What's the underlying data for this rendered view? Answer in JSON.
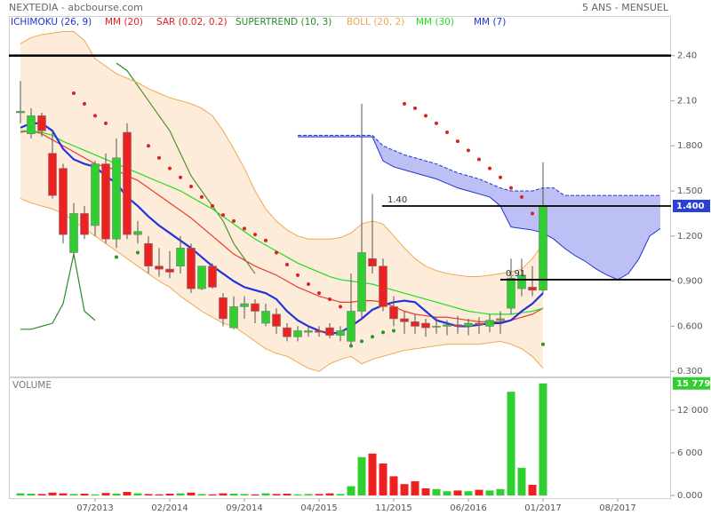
{
  "header": {
    "title": "NEXTEDIA - abcbourse.com",
    "period": "5 ANS - MENSUEL"
  },
  "chart_data": [
    {
      "type": "candlestick",
      "open": [
        2.02,
        1.88,
        2.0,
        1.75,
        1.65,
        1.09,
        1.35,
        1.27,
        1.68,
        1.18,
        1.89,
        1.21,
        1.15,
        1.0,
        0.98,
        1.0,
        1.12,
        0.85,
        1.0,
        0.79,
        0.59,
        0.73,
        0.75,
        0.62,
        0.68,
        0.59,
        0.53,
        0.56,
        0.57,
        0.59,
        0.54,
        0.5,
        0.7,
        1.05,
        1.0,
        0.73,
        0.65,
        0.63,
        0.62,
        0.6,
        0.6,
        0.61,
        0.6,
        0.62,
        0.6,
        0.64,
        0.72,
        0.85,
        0.86,
        0.84,
        null,
        null,
        null,
        null,
        null,
        null,
        null,
        null,
        null,
        null,
        null,
        null
      ],
      "high": [
        2.23,
        2.05,
        2.02,
        1.9,
        1.68,
        1.42,
        1.4,
        1.7,
        1.75,
        1.85,
        1.95,
        1.3,
        1.2,
        1.12,
        1.1,
        1.2,
        1.15,
        1.0,
        1.02,
        0.82,
        0.8,
        0.8,
        0.78,
        0.75,
        0.72,
        0.62,
        0.6,
        0.6,
        0.6,
        0.62,
        0.6,
        0.95,
        2.08,
        1.48,
        1.05,
        0.8,
        0.7,
        0.68,
        0.65,
        0.66,
        0.64,
        0.67,
        0.65,
        0.66,
        0.68,
        0.7,
        1.05,
        1.05,
        1.0,
        1.69,
        null,
        null,
        null,
        null,
        null,
        null,
        null,
        null,
        null,
        null,
        null,
        null
      ],
      "low": [
        1.95,
        1.85,
        1.86,
        1.45,
        1.15,
        1.06,
        1.18,
        1.2,
        1.15,
        1.12,
        1.18,
        1.15,
        0.95,
        0.93,
        0.92,
        0.95,
        0.82,
        0.84,
        0.85,
        0.6,
        0.58,
        0.65,
        0.62,
        0.6,
        0.55,
        0.5,
        0.5,
        0.53,
        0.53,
        0.52,
        0.5,
        0.47,
        0.65,
        0.95,
        0.7,
        0.6,
        0.55,
        0.55,
        0.53,
        0.55,
        0.54,
        0.55,
        0.54,
        0.55,
        0.56,
        0.55,
        0.68,
        0.8,
        0.8,
        0.82,
        null,
        null,
        null,
        null,
        null,
        null,
        null,
        null,
        null,
        null,
        null,
        null
      ],
      "close": [
        2.03,
        2.0,
        1.9,
        1.47,
        1.21,
        1.35,
        1.21,
        1.68,
        1.18,
        1.72,
        1.21,
        1.23,
        1.0,
        0.98,
        0.96,
        1.12,
        0.85,
        1.0,
        0.86,
        0.65,
        0.73,
        0.75,
        0.7,
        0.7,
        0.6,
        0.53,
        0.57,
        0.57,
        0.56,
        0.54,
        0.57,
        0.7,
        1.09,
        1.0,
        0.73,
        0.65,
        0.63,
        0.6,
        0.59,
        0.6,
        0.61,
        0.6,
        0.62,
        0.61,
        0.64,
        0.65,
        0.92,
        0.94,
        0.84,
        1.4,
        null,
        null,
        null,
        null,
        null,
        null,
        null,
        null,
        null,
        null,
        null,
        null
      ],
      "up_color": "#2fcf2f",
      "down_color": "#ee2020",
      "ylim": [
        0.26,
        2.77
      ],
      "yticks": [
        {
          "value": 0.3,
          "label": "0.300"
        },
        {
          "value": 0.6,
          "label": "0.600"
        },
        {
          "value": 0.9,
          "label": "0.900"
        },
        {
          "value": 1.2,
          "label": "1.200"
        },
        {
          "value": 1.5,
          "label": "1.500"
        },
        {
          "value": 1.8,
          "label": "1.800"
        },
        {
          "value": 2.1,
          "label": "2.10"
        },
        {
          "value": 2.4,
          "label": "2.40"
        }
      ],
      "last_label": "1.400",
      "last_color": "#2a3fd6",
      "levels": [
        {
          "value": 2.4
        },
        {
          "value": 1.4,
          "label": "1.40"
        },
        {
          "value": 0.91,
          "label": "0.91"
        }
      ],
      "series": [
        {
          "name": "ICHIMOKU (26, 9)",
          "color": "#2233cc",
          "kind": "cloud",
          "span_a": [
            null,
            null,
            null,
            null,
            null,
            null,
            null,
            null,
            null,
            null,
            null,
            null,
            null,
            null,
            null,
            null,
            null,
            null,
            null,
            null,
            null,
            null,
            null,
            null,
            null,
            null,
            1.87,
            1.87,
            1.87,
            1.87,
            1.87,
            1.87,
            1.87,
            1.87,
            1.8,
            1.77,
            1.74,
            1.72,
            1.7,
            1.68,
            1.65,
            1.62,
            1.6,
            1.58,
            1.55,
            1.52,
            1.5,
            1.5,
            1.5,
            1.52,
            1.52,
            1.47,
            1.47,
            1.47,
            1.47,
            1.47,
            1.47,
            1.47,
            1.47,
            1.47,
            1.47,
            null
          ],
          "span_b": [
            null,
            null,
            null,
            null,
            null,
            null,
            null,
            null,
            null,
            null,
            null,
            null,
            null,
            null,
            null,
            null,
            null,
            null,
            null,
            null,
            null,
            null,
            null,
            null,
            null,
            null,
            1.86,
            1.86,
            1.86,
            1.86,
            1.86,
            1.86,
            1.86,
            1.86,
            1.7,
            1.66,
            1.64,
            1.62,
            1.6,
            1.58,
            1.55,
            1.52,
            1.5,
            1.48,
            1.46,
            1.4,
            1.26,
            1.25,
            1.24,
            1.22,
            1.18,
            1.12,
            1.07,
            1.03,
            0.98,
            0.94,
            0.91,
            0.95,
            1.05,
            1.2,
            1.25,
            null
          ]
        },
        {
          "name": "MM (20)",
          "color": "#e82020",
          "kind": "line",
          "values": [
            1.89,
            1.9,
            1.88,
            1.84,
            1.8,
            1.76,
            1.72,
            1.68,
            1.66,
            1.64,
            1.6,
            1.57,
            1.52,
            1.47,
            1.42,
            1.37,
            1.32,
            1.26,
            1.2,
            1.14,
            1.08,
            1.04,
            1.0,
            0.97,
            0.94,
            0.9,
            0.86,
            0.83,
            0.8,
            0.78,
            0.76,
            0.76,
            0.77,
            0.77,
            0.76,
            0.73,
            0.7,
            0.68,
            0.67,
            0.66,
            0.66,
            0.65,
            0.64,
            0.63,
            0.63,
            0.63,
            0.64,
            0.66,
            0.68,
            0.72,
            null,
            null,
            null,
            null,
            null,
            null,
            null,
            null,
            null,
            null,
            null,
            null
          ]
        },
        {
          "name": "SAR (0.02, 0.2)",
          "color": "#dd2020",
          "kind": "dots",
          "below_color": "#1f9a1f",
          "values": [
            null,
            null,
            null,
            null,
            null,
            2.15,
            2.08,
            2.0,
            1.95,
            1.06,
            1.86,
            1.09,
            1.8,
            1.72,
            1.65,
            1.59,
            1.53,
            1.46,
            1.4,
            1.34,
            1.3,
            1.25,
            1.21,
            1.17,
            1.09,
            1.01,
            0.94,
            0.88,
            0.82,
            0.78,
            0.73,
            0.47,
            0.5,
            0.53,
            0.56,
            0.57,
            2.08,
            2.05,
            2.0,
            1.95,
            1.89,
            1.83,
            1.77,
            1.71,
            1.65,
            1.59,
            1.52,
            1.46,
            1.35,
            0.48,
            null,
            null,
            null,
            null,
            null,
            null,
            null,
            null,
            null,
            null,
            null,
            null
          ]
        },
        {
          "name": "SUPERTREND (10, 3)",
          "color": "#2a8a2a",
          "kind": "line",
          "values": [
            0.58,
            0.58,
            0.6,
            0.62,
            0.75,
            1.08,
            0.7,
            0.64,
            null,
            2.35,
            2.3,
            2.2,
            2.1,
            2.0,
            1.9,
            1.75,
            1.6,
            1.5,
            1.4,
            1.3,
            1.15,
            1.05,
            0.95,
            null,
            null,
            null,
            null,
            null,
            null,
            null,
            null,
            null,
            null,
            null,
            null,
            null,
            null,
            null,
            null,
            null,
            null,
            null,
            null,
            null,
            null,
            null,
            null,
            null,
            null,
            null,
            null,
            null,
            null,
            null,
            null,
            null,
            null,
            null,
            null,
            null,
            null,
            null
          ]
        },
        {
          "name": "BOLL (20, 2)",
          "color": "#f0a850",
          "kind": "band",
          "upper": [
            2.48,
            2.52,
            2.54,
            2.55,
            2.56,
            2.56,
            2.5,
            2.38,
            2.33,
            2.28,
            2.25,
            2.22,
            2.18,
            2.15,
            2.12,
            2.1,
            2.08,
            2.05,
            2.0,
            1.9,
            1.78,
            1.65,
            1.5,
            1.38,
            1.3,
            1.24,
            1.2,
            1.18,
            1.18,
            1.18,
            1.19,
            1.22,
            1.28,
            1.3,
            1.28,
            1.2,
            1.12,
            1.05,
            1.0,
            0.97,
            0.95,
            0.94,
            0.93,
            0.93,
            0.94,
            0.95,
            0.96,
            0.98,
            1.05,
            1.15,
            null,
            null,
            null,
            null,
            null,
            null,
            null,
            null,
            null,
            null,
            null,
            null
          ],
          "lower": [
            1.45,
            1.42,
            1.4,
            1.38,
            1.35,
            1.3,
            1.25,
            1.2,
            1.15,
            1.1,
            1.05,
            1.0,
            0.95,
            0.9,
            0.86,
            0.8,
            0.75,
            0.7,
            0.66,
            0.62,
            0.6,
            0.55,
            0.5,
            0.45,
            0.42,
            0.4,
            0.36,
            0.32,
            0.3,
            0.35,
            0.38,
            0.4,
            0.35,
            0.38,
            0.4,
            0.42,
            0.44,
            0.45,
            0.46,
            0.47,
            0.48,
            0.48,
            0.48,
            0.48,
            0.49,
            0.5,
            0.48,
            0.45,
            0.4,
            0.32,
            null,
            null,
            null,
            null,
            null,
            null,
            null,
            null,
            null,
            null,
            null,
            null
          ]
        },
        {
          "name": "MM (30)",
          "color": "#22dd22",
          "kind": "line",
          "values": [
            1.9,
            1.9,
            1.89,
            1.87,
            1.83,
            1.8,
            1.77,
            1.74,
            1.71,
            1.68,
            1.65,
            1.62,
            1.59,
            1.56,
            1.53,
            1.5,
            1.46,
            1.42,
            1.38,
            1.33,
            1.28,
            1.23,
            1.18,
            1.14,
            1.1,
            1.06,
            1.02,
            0.99,
            0.96,
            0.93,
            0.91,
            0.9,
            0.89,
            0.88,
            0.86,
            0.84,
            0.82,
            0.8,
            0.78,
            0.76,
            0.74,
            0.72,
            0.7,
            0.69,
            0.68,
            0.68,
            0.68,
            0.69,
            0.7,
            0.72,
            null,
            null,
            null,
            null,
            null,
            null,
            null,
            null,
            null,
            null,
            null,
            null
          ]
        },
        {
          "name": "MM (7)",
          "color": "#2233dd",
          "kind": "line",
          "width": 2.2,
          "values": [
            1.92,
            1.95,
            1.95,
            1.9,
            1.78,
            1.71,
            1.68,
            1.66,
            1.6,
            1.55,
            1.46,
            1.4,
            1.33,
            1.27,
            1.22,
            1.17,
            1.12,
            1.06,
            1.0,
            0.95,
            0.9,
            0.86,
            0.84,
            0.82,
            0.78,
            0.7,
            0.64,
            0.6,
            0.57,
            0.55,
            0.56,
            0.6,
            0.65,
            0.71,
            0.74,
            0.76,
            0.77,
            0.76,
            0.7,
            0.64,
            0.62,
            0.6,
            0.6,
            0.61,
            0.62,
            0.62,
            0.64,
            0.7,
            0.75,
            0.82,
            null,
            null,
            null,
            null,
            null,
            null,
            null,
            null,
            null,
            null,
            null,
            null
          ]
        }
      ]
    },
    {
      "type": "bar",
      "title": "VOLUME",
      "categories": [
        null,
        null,
        null,
        null,
        null,
        null,
        null,
        "07/2013",
        null,
        null,
        null,
        null,
        null,
        null,
        "02/2014",
        null,
        null,
        null,
        null,
        null,
        null,
        "09/2014",
        null,
        null,
        null,
        null,
        null,
        null,
        "04/2015",
        null,
        null,
        null,
        null,
        null,
        null,
        "11/2015",
        null,
        null,
        null,
        null,
        null,
        null,
        "06/2016",
        null,
        null,
        null,
        null,
        null,
        null,
        "01/2017",
        null,
        null,
        null,
        null,
        null,
        null,
        "08/2017",
        null,
        null,
        null,
        null,
        null
      ],
      "values": [
        300,
        250,
        200,
        400,
        300,
        200,
        250,
        150,
        350,
        250,
        500,
        300,
        200,
        150,
        250,
        300,
        400,
        200,
        150,
        300,
        250,
        200,
        150,
        300,
        200,
        250,
        150,
        200,
        200,
        300,
        200,
        1300,
        5400,
        5900,
        4500,
        2700,
        1600,
        2000,
        1000,
        900,
        600,
        700,
        600,
        800,
        700,
        900,
        14600,
        3900,
        1500,
        15779,
        null,
        null,
        null,
        null,
        null,
        null,
        null,
        null,
        null,
        null,
        null,
        null
      ],
      "ylim": [
        -500,
        16625
      ],
      "yticks": [
        {
          "value": 0,
          "label": "0.000"
        },
        {
          "value": 6000,
          "label": "6 000"
        },
        {
          "value": 12000,
          "label": "12 000"
        }
      ],
      "last_label": "15 779",
      "last_color": "#2fcf2f"
    }
  ]
}
